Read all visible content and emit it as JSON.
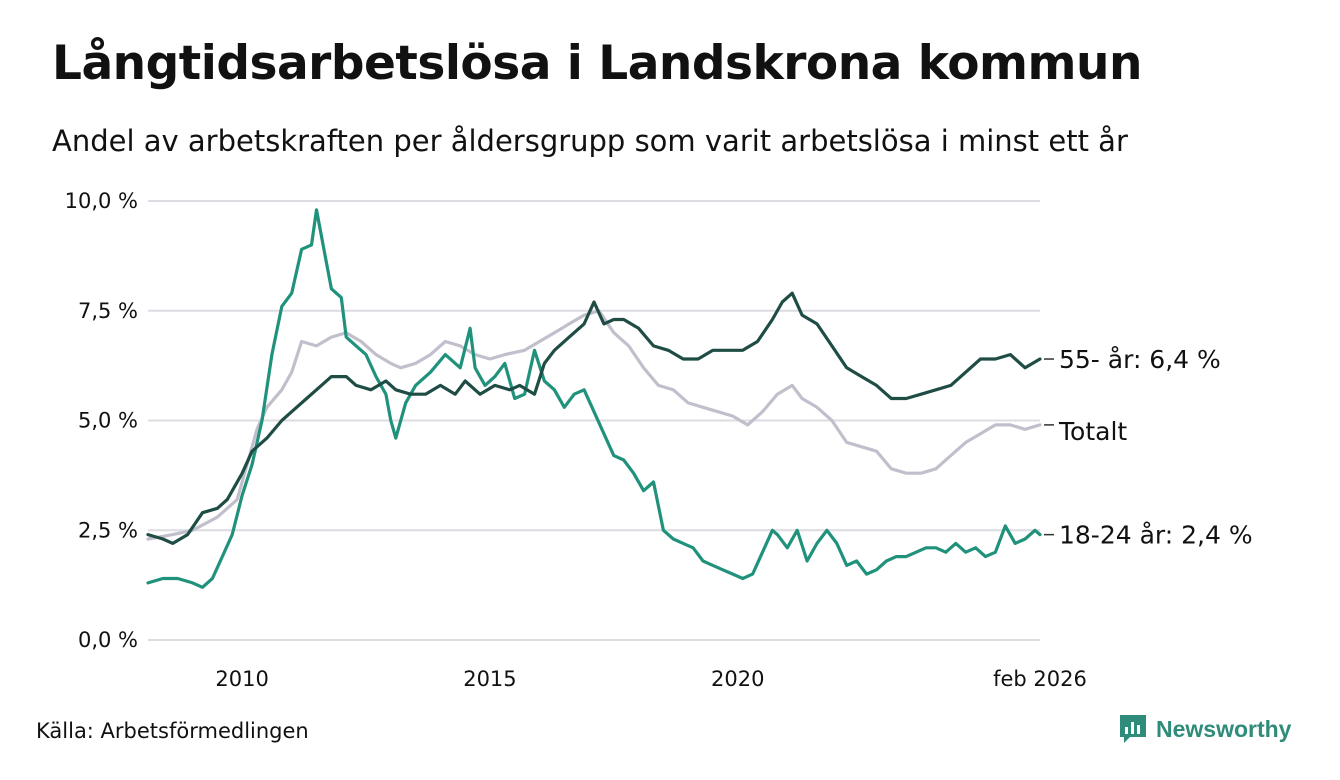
{
  "title": "Långtidsarbetslösa i Landskrona kommun",
  "subtitle": "Andel av arbetskraften per åldersgrupp som varit arbetslösa i minst ett år",
  "source": "Källa: Arbetsförmedlingen",
  "brand": {
    "name": "Newsworthy",
    "color": "#2f8c7a"
  },
  "chart_data": {
    "type": "line",
    "title": "Långtidsarbetslösa i Landskrona kommun",
    "xlabel": "",
    "ylabel": "",
    "xlim": [
      2008.1,
      2026.1
    ],
    "ylim": [
      0,
      10
    ],
    "y_ticks": [
      0,
      2.5,
      5,
      7.5,
      10
    ],
    "y_tick_labels": [
      "0,0 %",
      "2,5 %",
      "5,0 %",
      "7,5 %",
      "10,0 %"
    ],
    "x_ticks": [
      2010,
      2015,
      2020,
      2026.1
    ],
    "x_tick_labels": [
      "2010",
      "2015",
      "2020",
      "feb 2026"
    ],
    "grid": true,
    "series": [
      {
        "name": "Totalt",
        "label": "Totalt",
        "color": "#c2bfcc",
        "points": [
          [
            2008.1,
            2.3
          ],
          [
            2008.6,
            2.4
          ],
          [
            2009.0,
            2.5
          ],
          [
            2009.5,
            2.8
          ],
          [
            2009.9,
            3.2
          ],
          [
            2010.1,
            4.0
          ],
          [
            2010.3,
            4.8
          ],
          [
            2010.5,
            5.3
          ],
          [
            2010.8,
            5.7
          ],
          [
            2011.0,
            6.1
          ],
          [
            2011.2,
            6.8
          ],
          [
            2011.5,
            6.7
          ],
          [
            2011.8,
            6.9
          ],
          [
            2012.1,
            7.0
          ],
          [
            2012.4,
            6.8
          ],
          [
            2012.7,
            6.5
          ],
          [
            2013.0,
            6.3
          ],
          [
            2013.2,
            6.2
          ],
          [
            2013.5,
            6.3
          ],
          [
            2013.8,
            6.5
          ],
          [
            2014.1,
            6.8
          ],
          [
            2014.4,
            6.7
          ],
          [
            2014.7,
            6.5
          ],
          [
            2015.0,
            6.4
          ],
          [
            2015.3,
            6.5
          ],
          [
            2015.7,
            6.6
          ],
          [
            2016.0,
            6.8
          ],
          [
            2016.3,
            7.0
          ],
          [
            2016.6,
            7.2
          ],
          [
            2016.9,
            7.4
          ],
          [
            2017.2,
            7.5
          ],
          [
            2017.5,
            7.0
          ],
          [
            2017.8,
            6.7
          ],
          [
            2018.1,
            6.2
          ],
          [
            2018.4,
            5.8
          ],
          [
            2018.7,
            5.7
          ],
          [
            2019.0,
            5.4
          ],
          [
            2019.3,
            5.3
          ],
          [
            2019.6,
            5.2
          ],
          [
            2019.9,
            5.1
          ],
          [
            2020.2,
            4.9
          ],
          [
            2020.5,
            5.2
          ],
          [
            2020.8,
            5.6
          ],
          [
            2021.1,
            5.8
          ],
          [
            2021.3,
            5.5
          ],
          [
            2021.6,
            5.3
          ],
          [
            2021.9,
            5.0
          ],
          [
            2022.2,
            4.5
          ],
          [
            2022.5,
            4.4
          ],
          [
            2022.8,
            4.3
          ],
          [
            2023.1,
            3.9
          ],
          [
            2023.4,
            3.8
          ],
          [
            2023.7,
            3.8
          ],
          [
            2024.0,
            3.9
          ],
          [
            2024.3,
            4.2
          ],
          [
            2024.6,
            4.5
          ],
          [
            2024.9,
            4.7
          ],
          [
            2025.2,
            4.9
          ],
          [
            2025.5,
            4.9
          ],
          [
            2025.8,
            4.8
          ],
          [
            2026.1,
            4.9
          ]
        ]
      },
      {
        "name": "18-24 år",
        "label": "18-24 år: 2,4 %",
        "color": "#20927c",
        "points": [
          [
            2008.1,
            1.3
          ],
          [
            2008.4,
            1.4
          ],
          [
            2008.7,
            1.4
          ],
          [
            2009.0,
            1.3
          ],
          [
            2009.2,
            1.2
          ],
          [
            2009.4,
            1.4
          ],
          [
            2009.6,
            1.9
          ],
          [
            2009.8,
            2.4
          ],
          [
            2010.0,
            3.3
          ],
          [
            2010.2,
            4.0
          ],
          [
            2010.4,
            5.0
          ],
          [
            2010.6,
            6.5
          ],
          [
            2010.8,
            7.6
          ],
          [
            2011.0,
            7.9
          ],
          [
            2011.2,
            8.9
          ],
          [
            2011.4,
            9.0
          ],
          [
            2011.5,
            9.8
          ],
          [
            2011.7,
            8.6
          ],
          [
            2011.8,
            8.0
          ],
          [
            2012.0,
            7.8
          ],
          [
            2012.1,
            6.9
          ],
          [
            2012.3,
            6.7
          ],
          [
            2012.5,
            6.5
          ],
          [
            2012.7,
            6.0
          ],
          [
            2012.9,
            5.6
          ],
          [
            2013.0,
            5.0
          ],
          [
            2013.1,
            4.6
          ],
          [
            2013.3,
            5.4
          ],
          [
            2013.5,
            5.8
          ],
          [
            2013.8,
            6.1
          ],
          [
            2014.1,
            6.5
          ],
          [
            2014.4,
            6.2
          ],
          [
            2014.6,
            7.1
          ],
          [
            2014.7,
            6.2
          ],
          [
            2014.9,
            5.8
          ],
          [
            2015.1,
            6.0
          ],
          [
            2015.3,
            6.3
          ],
          [
            2015.5,
            5.5
          ],
          [
            2015.7,
            5.6
          ],
          [
            2015.9,
            6.6
          ],
          [
            2016.1,
            5.9
          ],
          [
            2016.3,
            5.7
          ],
          [
            2016.5,
            5.3
          ],
          [
            2016.7,
            5.6
          ],
          [
            2016.9,
            5.7
          ],
          [
            2017.1,
            5.2
          ],
          [
            2017.3,
            4.7
          ],
          [
            2017.5,
            4.2
          ],
          [
            2017.7,
            4.1
          ],
          [
            2017.9,
            3.8
          ],
          [
            2018.1,
            3.4
          ],
          [
            2018.3,
            3.6
          ],
          [
            2018.5,
            2.5
          ],
          [
            2018.7,
            2.3
          ],
          [
            2018.9,
            2.2
          ],
          [
            2019.1,
            2.1
          ],
          [
            2019.3,
            1.8
          ],
          [
            2019.5,
            1.7
          ],
          [
            2019.7,
            1.6
          ],
          [
            2019.9,
            1.5
          ],
          [
            2020.1,
            1.4
          ],
          [
            2020.3,
            1.5
          ],
          [
            2020.5,
            2.0
          ],
          [
            2020.7,
            2.5
          ],
          [
            2020.8,
            2.4
          ],
          [
            2021.0,
            2.1
          ],
          [
            2021.2,
            2.5
          ],
          [
            2021.4,
            1.8
          ],
          [
            2021.6,
            2.2
          ],
          [
            2021.8,
            2.5
          ],
          [
            2022.0,
            2.2
          ],
          [
            2022.2,
            1.7
          ],
          [
            2022.4,
            1.8
          ],
          [
            2022.6,
            1.5
          ],
          [
            2022.8,
            1.6
          ],
          [
            2023.0,
            1.8
          ],
          [
            2023.2,
            1.9
          ],
          [
            2023.4,
            1.9
          ],
          [
            2023.6,
            2.0
          ],
          [
            2023.8,
            2.1
          ],
          [
            2024.0,
            2.1
          ],
          [
            2024.2,
            2.0
          ],
          [
            2024.4,
            2.2
          ],
          [
            2024.6,
            2.0
          ],
          [
            2024.8,
            2.1
          ],
          [
            2025.0,
            1.9
          ],
          [
            2025.2,
            2.0
          ],
          [
            2025.4,
            2.6
          ],
          [
            2025.6,
            2.2
          ],
          [
            2025.8,
            2.3
          ],
          [
            2026.0,
            2.5
          ],
          [
            2026.1,
            2.4
          ]
        ]
      },
      {
        "name": "55- år",
        "label": "55- år: 6,4 %",
        "color": "#1f4d45",
        "points": [
          [
            2008.1,
            2.4
          ],
          [
            2008.4,
            2.3
          ],
          [
            2008.6,
            2.2
          ],
          [
            2008.9,
            2.4
          ],
          [
            2009.2,
            2.9
          ],
          [
            2009.5,
            3.0
          ],
          [
            2009.7,
            3.2
          ],
          [
            2010.0,
            3.8
          ],
          [
            2010.2,
            4.3
          ],
          [
            2010.5,
            4.6
          ],
          [
            2010.8,
            5.0
          ],
          [
            2011.0,
            5.2
          ],
          [
            2011.3,
            5.5
          ],
          [
            2011.6,
            5.8
          ],
          [
            2011.8,
            6.0
          ],
          [
            2012.1,
            6.0
          ],
          [
            2012.3,
            5.8
          ],
          [
            2012.6,
            5.7
          ],
          [
            2012.9,
            5.9
          ],
          [
            2013.1,
            5.7
          ],
          [
            2013.4,
            5.6
          ],
          [
            2013.7,
            5.6
          ],
          [
            2014.0,
            5.8
          ],
          [
            2014.3,
            5.6
          ],
          [
            2014.5,
            5.9
          ],
          [
            2014.8,
            5.6
          ],
          [
            2015.1,
            5.8
          ],
          [
            2015.4,
            5.7
          ],
          [
            2015.6,
            5.8
          ],
          [
            2015.9,
            5.6
          ],
          [
            2016.1,
            6.3
          ],
          [
            2016.3,
            6.6
          ],
          [
            2016.6,
            6.9
          ],
          [
            2016.9,
            7.2
          ],
          [
            2017.1,
            7.7
          ],
          [
            2017.3,
            7.2
          ],
          [
            2017.5,
            7.3
          ],
          [
            2017.7,
            7.3
          ],
          [
            2018.0,
            7.1
          ],
          [
            2018.3,
            6.7
          ],
          [
            2018.6,
            6.6
          ],
          [
            2018.9,
            6.4
          ],
          [
            2019.2,
            6.4
          ],
          [
            2019.5,
            6.6
          ],
          [
            2019.8,
            6.6
          ],
          [
            2020.1,
            6.6
          ],
          [
            2020.4,
            6.8
          ],
          [
            2020.7,
            7.3
          ],
          [
            2020.9,
            7.7
          ],
          [
            2021.1,
            7.9
          ],
          [
            2021.3,
            7.4
          ],
          [
            2021.6,
            7.2
          ],
          [
            2021.9,
            6.7
          ],
          [
            2022.2,
            6.2
          ],
          [
            2022.5,
            6.0
          ],
          [
            2022.8,
            5.8
          ],
          [
            2023.1,
            5.5
          ],
          [
            2023.4,
            5.5
          ],
          [
            2023.7,
            5.6
          ],
          [
            2024.0,
            5.7
          ],
          [
            2024.3,
            5.8
          ],
          [
            2024.6,
            6.1
          ],
          [
            2024.9,
            6.4
          ],
          [
            2025.2,
            6.4
          ],
          [
            2025.5,
            6.5
          ],
          [
            2025.8,
            6.2
          ],
          [
            2026.1,
            6.4
          ]
        ]
      }
    ]
  }
}
